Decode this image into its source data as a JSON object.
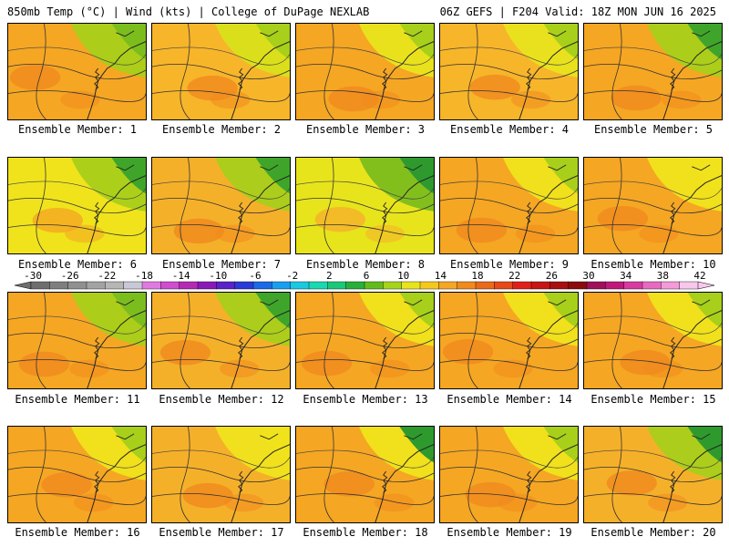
{
  "header": {
    "left": "850mb Temp (°C) | Wind (kts) | College of DuPage NEXLAB",
    "right": "06Z GEFS | F204 Valid: 18Z MON JUN 16 2025"
  },
  "members": [
    "Ensemble Member: 1",
    "Ensemble Member: 2",
    "Ensemble Member: 3",
    "Ensemble Member: 4",
    "Ensemble Member: 5",
    "Ensemble Member: 6",
    "Ensemble Member: 7",
    "Ensemble Member: 8",
    "Ensemble Member: 9",
    "Ensemble Member: 10",
    "Ensemble Member: 11",
    "Ensemble Member: 12",
    "Ensemble Member: 13",
    "Ensemble Member: 14",
    "Ensemble Member: 15",
    "Ensemble Member: 16",
    "Ensemble Member: 17",
    "Ensemble Member: 18",
    "Ensemble Member: 19",
    "Ensemble Member: 20"
  ],
  "panel_palettes": [
    {
      "base": "#f5a623",
      "warm": "#f08a1e",
      "cool": "#a8cf1a",
      "green": "#7cbd1e"
    },
    {
      "base": "#f7b52a",
      "warm": "#f08a1e",
      "cool": "#d9e21a",
      "green": "#a8cf1a"
    },
    {
      "base": "#f5a623",
      "warm": "#f08a1e",
      "cool": "#e8e41c",
      "green": "#a8cf1a"
    },
    {
      "base": "#f7b52a",
      "warm": "#f08a1e",
      "cool": "#e8e41c",
      "green": "#a8cf1a"
    },
    {
      "base": "#f5a623",
      "warm": "#f08a1e",
      "cool": "#a8cf1a",
      "green": "#3fa52a"
    },
    {
      "base": "#f0e31c",
      "warm": "#f5a623",
      "cool": "#a8cf1a",
      "green": "#3fa52a"
    },
    {
      "base": "#f5b02a",
      "warm": "#f08a1e",
      "cool": "#a8cf1a",
      "green": "#3fa52a"
    },
    {
      "base": "#e8e41c",
      "warm": "#f5b02a",
      "cool": "#7cbd1e",
      "green": "#2e9a2e"
    },
    {
      "base": "#f5a623",
      "warm": "#f08a1e",
      "cool": "#f0e31c",
      "green": "#a8cf1a"
    },
    {
      "base": "#f5a623",
      "warm": "#f08a1e",
      "cool": "#f0e31c",
      "green": "#f0e31c"
    },
    {
      "base": "#f5a623",
      "warm": "#f08a1e",
      "cool": "#a8cf1a",
      "green": "#7cbd1e"
    },
    {
      "base": "#f5b02a",
      "warm": "#f08a1e",
      "cool": "#a8cf1a",
      "green": "#3fa52a"
    },
    {
      "base": "#f5a623",
      "warm": "#f08a1e",
      "cool": "#f0e31c",
      "green": "#a8cf1a"
    },
    {
      "base": "#f5a623",
      "warm": "#f08a1e",
      "cool": "#f0e31c",
      "green": "#a8cf1a"
    },
    {
      "base": "#f5a623",
      "warm": "#f08a1e",
      "cool": "#f0e31c",
      "green": "#a8cf1a"
    },
    {
      "base": "#f5a623",
      "warm": "#f08a1e",
      "cool": "#f0e31c",
      "green": "#a8cf1a"
    },
    {
      "base": "#f5b02a",
      "warm": "#f08a1e",
      "cool": "#f0e31c",
      "green": "#f0e31c"
    },
    {
      "base": "#f5a623",
      "warm": "#f08a1e",
      "cool": "#f0e31c",
      "green": "#2e9a2e"
    },
    {
      "base": "#f5a623",
      "warm": "#f08a1e",
      "cool": "#f0e31c",
      "green": "#a8cf1a"
    },
    {
      "base": "#f5b02a",
      "warm": "#f08a1e",
      "cool": "#a8cf1a",
      "green": "#2e9a2e"
    }
  ],
  "colorbar": {
    "labels": [
      "-30",
      "-26",
      "-22",
      "-18",
      "-14",
      "-10",
      "-6",
      "-2",
      "2",
      "6",
      "10",
      "14",
      "18",
      "22",
      "26",
      "30",
      "34",
      "38",
      "42"
    ],
    "colors": [
      "#6e6e6e",
      "#7f7f7f",
      "#909090",
      "#a3a3a3",
      "#b6b6b6",
      "#c8c8d8",
      "#e07ae0",
      "#d04cd0",
      "#b52ab5",
      "#8a1ab8",
      "#5a22c8",
      "#2a3ad8",
      "#1a6ae8",
      "#1a9ef0",
      "#1ac8e0",
      "#1ad8b0",
      "#1ac878",
      "#28b03a",
      "#62bd1c",
      "#a6d41a",
      "#e8e41c",
      "#f5c81e",
      "#f5a623",
      "#f08a1e",
      "#ea6a1a",
      "#e54a18",
      "#e02018",
      "#c81414",
      "#a81010",
      "#8a0c0c",
      "#a0105a",
      "#c0187a",
      "#d83aa0",
      "#e86ac0",
      "#f49ad8",
      "#f8c8ec"
    ]
  }
}
